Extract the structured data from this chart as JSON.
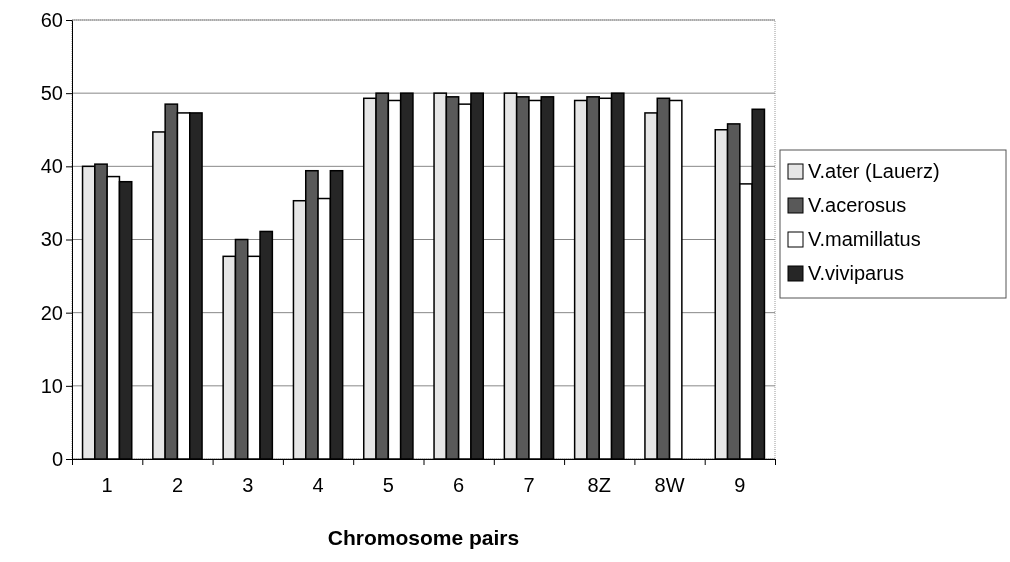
{
  "chart_data": {
    "type": "bar",
    "xlabel": "Chromosome pairs",
    "categories": [
      "1",
      "2",
      "3",
      "4",
      "5",
      "6",
      "7",
      "8Z",
      "8W",
      "9"
    ],
    "series": [
      {
        "name": "V.ater (Lauerz)",
        "color": "#e6e6e6",
        "values": [
          40,
          44.7,
          27.7,
          35.3,
          49.3,
          50,
          50,
          49,
          47.3,
          45
        ]
      },
      {
        "name": "V.acerosus",
        "color": "#595959",
        "values": [
          40.3,
          48.5,
          30,
          39.4,
          50,
          49.5,
          49.5,
          49.5,
          49.3,
          45.8
        ]
      },
      {
        "name": "V.mamillatus",
        "color": "#ffffff",
        "values": [
          38.6,
          47.3,
          27.7,
          35.6,
          49,
          48.5,
          49,
          49.3,
          49,
          37.6
        ]
      },
      {
        "name": "V.viviparus",
        "color": "#262626",
        "values": [
          37.9,
          47.3,
          31.1,
          39.4,
          50,
          50,
          49.5,
          50,
          null,
          47.8
        ]
      }
    ],
    "ylim": [
      0,
      60
    ],
    "yticks": [
      0,
      10,
      20,
      30,
      40,
      50,
      60
    ],
    "grid": "y",
    "legend": "right"
  }
}
